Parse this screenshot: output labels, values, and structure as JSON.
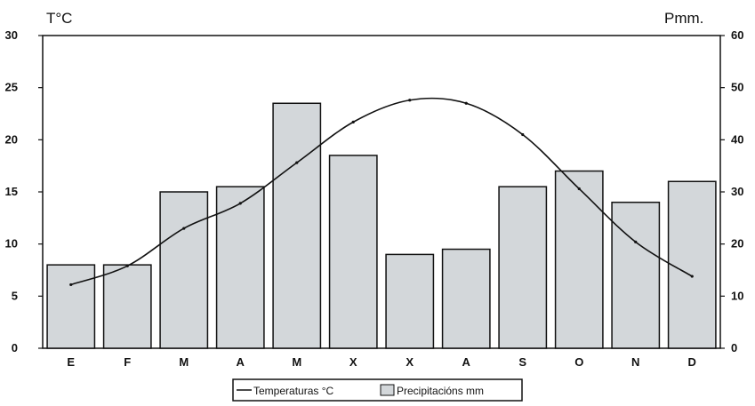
{
  "chart_data": {
    "type": "bar",
    "left_axis_label": "T°C",
    "right_axis_label": "Pmm.",
    "categories": [
      "E",
      "F",
      "M",
      "A",
      "M",
      "X",
      "X",
      "A",
      "S",
      "O",
      "N",
      "D"
    ],
    "left_ylim": [
      0,
      30
    ],
    "right_ylim": [
      0,
      60
    ],
    "left_ticks": [
      "0",
      "5",
      "10",
      "15",
      "20",
      "25",
      "30"
    ],
    "right_ticks": [
      "0",
      "10",
      "20",
      "30",
      "40",
      "50",
      "60"
    ],
    "series": [
      {
        "name": "Precipitacións mm",
        "type": "bar",
        "axis": "right",
        "values": [
          16,
          16,
          30,
          31,
          47,
          37,
          18,
          19,
          31,
          34,
          28,
          32
        ]
      },
      {
        "name": "Temperaturas °C",
        "type": "line",
        "axis": "left",
        "values": [
          6.1,
          7.9,
          11.5,
          13.9,
          17.8,
          21.7,
          23.8,
          23.5,
          20.5,
          15.3,
          10.2,
          6.9
        ]
      }
    ],
    "legend_position": "bottom-center",
    "colors": {
      "bar_fill": "#d3d7da",
      "bar_stroke": "#111111",
      "line": "#111111"
    }
  }
}
